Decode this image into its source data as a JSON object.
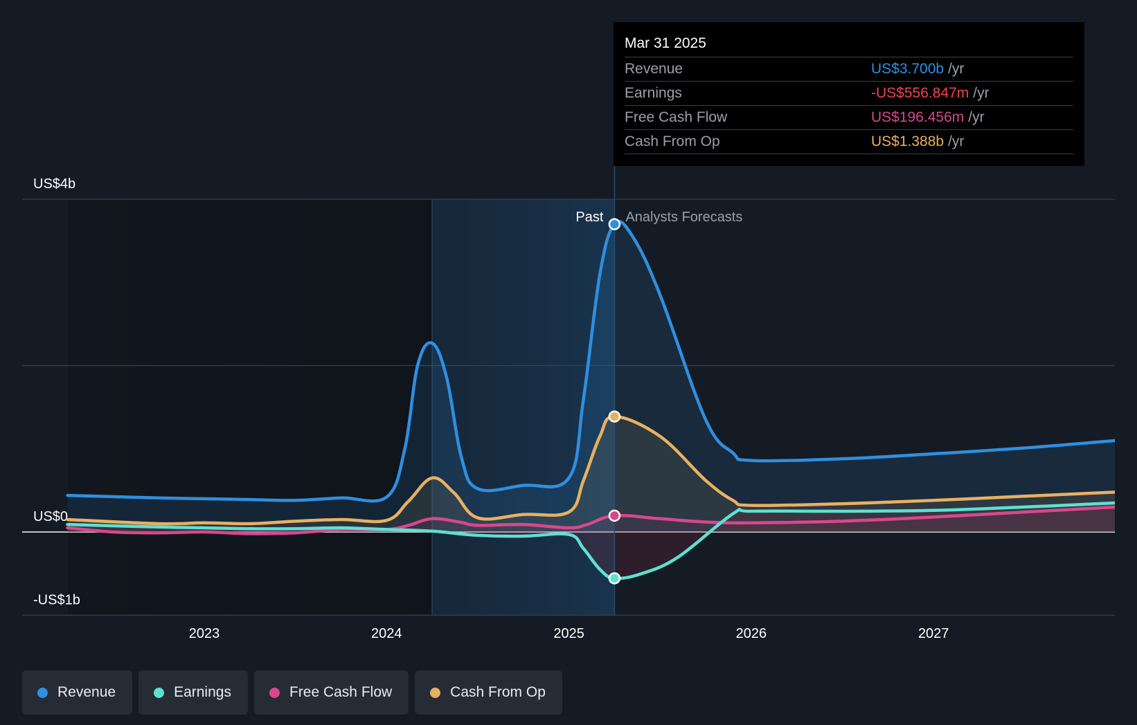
{
  "chart_data": {
    "type": "line",
    "y_unit": "US$ billions",
    "ylim": [
      -1,
      4
    ],
    "y_tick_labels": [
      "US$4b",
      "US$0",
      "-US$1b"
    ],
    "x_ticks": [
      2023,
      2024,
      2025,
      2026,
      2027
    ],
    "xlim": [
      2022.25,
      2028.0
    ],
    "past_label": "Past",
    "forecast_label": "Analysts Forecasts",
    "past_end_x": 2025.25,
    "highlight_start_x": 2024.25,
    "grid": true,
    "legend_position": "bottom-left",
    "series": [
      {
        "name": "Revenue",
        "color": "#2f8fe0",
        "x": [
          2022.25,
          2022.75,
          2023.0,
          2023.25,
          2023.5,
          2023.75,
          2024.0,
          2024.1,
          2024.17,
          2024.25,
          2024.33,
          2024.41,
          2024.5,
          2024.75,
          2025.0,
          2025.08,
          2025.17,
          2025.25,
          2025.35,
          2025.5,
          2025.75,
          2025.9,
          2026.0,
          2026.5,
          2027.0,
          2027.5,
          2028.0
        ],
        "y": [
          0.44,
          0.41,
          0.4,
          0.39,
          0.38,
          0.41,
          0.42,
          1.0,
          2.0,
          2.27,
          1.85,
          0.9,
          0.52,
          0.56,
          0.65,
          1.6,
          3.1,
          3.7,
          3.55,
          2.85,
          1.35,
          0.95,
          0.86,
          0.88,
          0.94,
          1.01,
          1.1
        ]
      },
      {
        "name": "Earnings",
        "color": "#5ee0d1",
        "x": [
          2022.25,
          2022.75,
          2023.0,
          2023.25,
          2023.5,
          2023.75,
          2024.0,
          2024.25,
          2024.5,
          2024.75,
          2025.0,
          2025.08,
          2025.17,
          2025.25,
          2025.4,
          2025.6,
          2025.9,
          2026.0,
          2026.5,
          2027.0,
          2027.5,
          2028.0
        ],
        "y": [
          0.09,
          0.06,
          0.05,
          0.04,
          0.04,
          0.05,
          0.03,
          0.01,
          -0.04,
          -0.05,
          -0.03,
          -0.2,
          -0.45,
          -0.557,
          -0.5,
          -0.3,
          0.22,
          0.25,
          0.25,
          0.26,
          0.3,
          0.35
        ]
      },
      {
        "name": "Free Cash Flow",
        "color": "#d6488c",
        "x": [
          2022.25,
          2022.5,
          2022.75,
          2023.0,
          2023.25,
          2023.5,
          2023.75,
          2024.0,
          2024.12,
          2024.25,
          2024.4,
          2024.5,
          2024.75,
          2025.0,
          2025.1,
          2025.25,
          2025.5,
          2025.75,
          2026.0,
          2026.5,
          2027.0,
          2027.5,
          2028.0
        ],
        "y": [
          0.05,
          0.0,
          -0.01,
          0.0,
          -0.02,
          -0.01,
          0.03,
          0.03,
          0.08,
          0.16,
          0.12,
          0.08,
          0.09,
          0.05,
          0.09,
          0.196,
          0.16,
          0.12,
          0.11,
          0.13,
          0.18,
          0.24,
          0.3
        ]
      },
      {
        "name": "Cash From Op",
        "color": "#e8b060",
        "x": [
          2022.25,
          2022.75,
          2023.0,
          2023.25,
          2023.5,
          2023.75,
          2024.0,
          2024.12,
          2024.25,
          2024.37,
          2024.5,
          2024.75,
          2025.0,
          2025.08,
          2025.17,
          2025.25,
          2025.5,
          2025.75,
          2025.9,
          2026.0,
          2026.5,
          2027.0,
          2027.5,
          2028.0
        ],
        "y": [
          0.15,
          0.1,
          0.11,
          0.1,
          0.13,
          0.15,
          0.14,
          0.37,
          0.65,
          0.47,
          0.17,
          0.21,
          0.24,
          0.62,
          1.15,
          1.388,
          1.15,
          0.62,
          0.38,
          0.32,
          0.34,
          0.38,
          0.43,
          0.48
        ]
      }
    ]
  },
  "tooltip": {
    "date": "Mar 31 2025",
    "rows": [
      {
        "label": "Revenue",
        "value": "US$3.700b",
        "unit": "/yr",
        "color": "#2f8fe0"
      },
      {
        "label": "Earnings",
        "value": "-US$556.847m",
        "unit": "/yr",
        "color": "#f0444d"
      },
      {
        "label": "Free Cash Flow",
        "value": "US$196.456m",
        "unit": "/yr",
        "color": "#d6488c"
      },
      {
        "label": "Cash From Op",
        "value": "US$1.388b",
        "unit": "/yr",
        "color": "#e8b060"
      }
    ]
  },
  "legend": [
    {
      "label": "Revenue",
      "color": "#2f8fe0"
    },
    {
      "label": "Earnings",
      "color": "#5ee0d1"
    },
    {
      "label": "Free Cash Flow",
      "color": "#d6488c"
    },
    {
      "label": "Cash From Op",
      "color": "#e8b060"
    }
  ]
}
